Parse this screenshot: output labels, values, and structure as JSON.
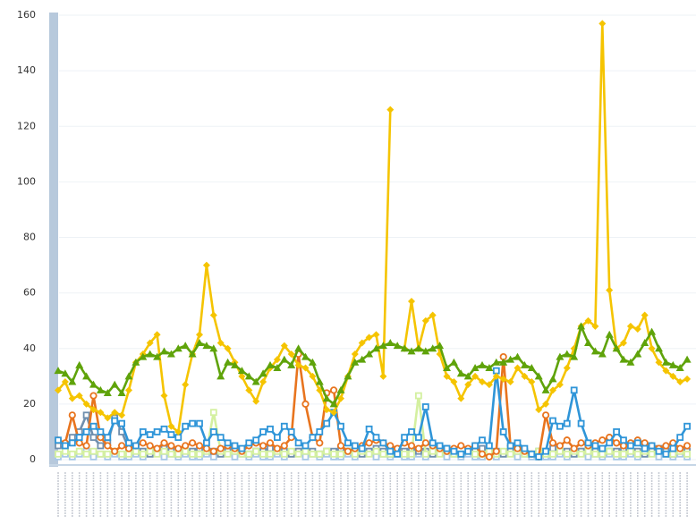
{
  "chart_data": {
    "type": "line",
    "categories": [
      null,
      null,
      null,
      null,
      null,
      null,
      null,
      null,
      null,
      null,
      null,
      null,
      null,
      null,
      null,
      null,
      null,
      null,
      null,
      null,
      null,
      null,
      null,
      null,
      null,
      null,
      null,
      null,
      null,
      null,
      null,
      null,
      null,
      null,
      null,
      null,
      null,
      null,
      null,
      null,
      null,
      null,
      null,
      null,
      null,
      null,
      null,
      null,
      null,
      null,
      null,
      null,
      null,
      null,
      null,
      null,
      null,
      null,
      null,
      null,
      null,
      null,
      null,
      null,
      null,
      null,
      null,
      null,
      null,
      null,
      null,
      null,
      null,
      null,
      null,
      null,
      null,
      null,
      null,
      null,
      null,
      null,
      null,
      null,
      null,
      null,
      null,
      null,
      null,
      null
    ],
    "ylim": [
      0,
      160
    ],
    "yticks": [
      0,
      20,
      40,
      60,
      80,
      100,
      120,
      140,
      160
    ],
    "grid": true,
    "series": [
      {
        "color": "#a8c8e8",
        "marker": "square",
        "values": [
          1,
          2,
          1,
          2,
          3,
          1,
          2,
          1,
          2,
          1,
          1,
          2,
          1,
          2,
          3,
          1,
          2,
          1,
          2,
          1,
          1,
          2,
          1,
          2,
          3,
          1,
          2,
          1,
          2,
          1,
          1,
          2,
          1,
          2,
          3,
          1,
          2,
          1,
          2,
          1,
          1,
          2,
          1,
          2,
          3,
          1,
          2,
          1,
          2,
          1,
          1,
          2,
          1,
          2,
          3,
          1,
          2,
          1,
          2,
          1,
          1,
          2,
          1,
          2,
          3,
          1,
          2,
          1,
          2,
          1,
          1,
          2,
          1,
          2,
          3,
          1,
          2,
          1,
          2,
          1,
          1,
          2,
          1,
          2,
          3,
          1,
          2,
          1,
          2,
          1
        ]
      },
      {
        "color": "#6f8fae",
        "marker": "square",
        "values": [
          5,
          4,
          8,
          10,
          16,
          8,
          5,
          6,
          15,
          10,
          4,
          3,
          3,
          2,
          3,
          4,
          3,
          2,
          3,
          3,
          4,
          3,
          3,
          2,
          3,
          4,
          3,
          2,
          3,
          3,
          4,
          3,
          3,
          2,
          3,
          4,
          3,
          2,
          3,
          3,
          4,
          3,
          3,
          2,
          3,
          4,
          3,
          2,
          3,
          3,
          4,
          3,
          3,
          2,
          3,
          4,
          3,
          2,
          3,
          3,
          4,
          3,
          3,
          2,
          3,
          4,
          3,
          2,
          3,
          3,
          4,
          3,
          3,
          2,
          3,
          4,
          3,
          2,
          3,
          3,
          4,
          3,
          3,
          2,
          3,
          4,
          3,
          2,
          3,
          3
        ]
      },
      {
        "color": "#d4f0a0",
        "marker": "square",
        "values": [
          2,
          3,
          2,
          3,
          2,
          3,
          2,
          2,
          3,
          2,
          2,
          3,
          2,
          3,
          2,
          3,
          2,
          2,
          3,
          2,
          2,
          3,
          17,
          3,
          2,
          3,
          2,
          2,
          3,
          2,
          2,
          3,
          2,
          3,
          2,
          3,
          2,
          2,
          3,
          2,
          2,
          3,
          2,
          3,
          2,
          3,
          2,
          2,
          3,
          2,
          2,
          23,
          2,
          3,
          2,
          3,
          2,
          2,
          3,
          2,
          2,
          3,
          2,
          3,
          2,
          3,
          2,
          2,
          3,
          2,
          2,
          3,
          2,
          3,
          2,
          3,
          2,
          2,
          3,
          2,
          2,
          3,
          2,
          3,
          2,
          3,
          2,
          2,
          3,
          2
        ]
      },
      {
        "color": "#e8741e",
        "marker": "circle",
        "values": [
          7,
          6,
          16,
          6,
          5,
          23,
          8,
          5,
          3,
          5,
          4,
          5,
          6,
          5,
          4,
          6,
          5,
          4,
          5,
          6,
          5,
          4,
          3,
          4,
          5,
          4,
          3,
          5,
          6,
          5,
          6,
          4,
          5,
          8,
          38,
          20,
          8,
          6,
          24,
          25,
          5,
          3,
          4,
          5,
          6,
          7,
          6,
          5,
          4,
          6,
          5,
          4,
          6,
          5,
          4,
          3,
          4,
          5,
          4,
          5,
          2,
          1,
          3,
          37,
          5,
          4,
          3,
          2,
          1,
          16,
          6,
          5,
          7,
          4,
          6,
          5,
          6,
          7,
          8,
          6,
          5,
          6,
          7,
          6,
          5,
          4,
          5,
          6,
          4,
          5
        ]
      },
      {
        "color": "#2f95d8",
        "marker": "square",
        "values": [
          7,
          5,
          6,
          8,
          10,
          12,
          10,
          8,
          14,
          13,
          6,
          5,
          10,
          9,
          10,
          11,
          9,
          8,
          12,
          13,
          13,
          6,
          10,
          8,
          6,
          5,
          4,
          6,
          7,
          10,
          11,
          8,
          12,
          10,
          6,
          5,
          8,
          10,
          13,
          17,
          12,
          6,
          5,
          4,
          11,
          8,
          6,
          3,
          2,
          8,
          10,
          8,
          19,
          6,
          5,
          4,
          3,
          2,
          3,
          5,
          7,
          5,
          32,
          10,
          5,
          6,
          4,
          2,
          1,
          3,
          14,
          12,
          13,
          25,
          13,
          6,
          5,
          4,
          6,
          10,
          7,
          5,
          6,
          4,
          5,
          3,
          2,
          4,
          8,
          12
        ]
      },
      {
        "color": "#f5c400",
        "marker": "diamond",
        "values": [
          25,
          28,
          22,
          23,
          20,
          18,
          17,
          15,
          17,
          16,
          25,
          35,
          38,
          42,
          45,
          23,
          12,
          10,
          27,
          38,
          45,
          70,
          52,
          42,
          40,
          35,
          30,
          25,
          21,
          28,
          33,
          36,
          41,
          38,
          34,
          33,
          30,
          25,
          18,
          17,
          22,
          30,
          38,
          42,
          44,
          45,
          30,
          126,
          null,
          40,
          57,
          40,
          50,
          52,
          38,
          30,
          28,
          22,
          27,
          30,
          28,
          27,
          30,
          29,
          28,
          33,
          30,
          28,
          18,
          20,
          25,
          27,
          33,
          40,
          48,
          50,
          48,
          157,
          61,
          40,
          42,
          48,
          47,
          52,
          40,
          35,
          32,
          30,
          28,
          29
        ]
      },
      {
        "color": "#5fa30a",
        "marker": "triangle",
        "values": [
          32,
          31,
          28,
          34,
          30,
          27,
          25,
          24,
          27,
          24,
          30,
          35,
          37,
          38,
          37,
          39,
          38,
          40,
          41,
          38,
          42,
          41,
          40,
          30,
          35,
          34,
          32,
          30,
          28,
          31,
          34,
          33,
          36,
          34,
          40,
          37,
          35,
          28,
          22,
          20,
          25,
          30,
          35,
          36,
          38,
          40,
          41,
          42,
          41,
          40,
          39,
          40,
          39,
          40,
          41,
          33,
          35,
          31,
          30,
          33,
          34,
          33,
          35,
          35,
          36,
          37,
          34,
          33,
          30,
          25,
          29,
          37,
          38,
          37,
          48,
          42,
          39,
          38,
          45,
          40,
          36,
          35,
          38,
          42,
          46,
          40,
          35,
          34,
          33,
          36
        ]
      }
    ]
  }
}
